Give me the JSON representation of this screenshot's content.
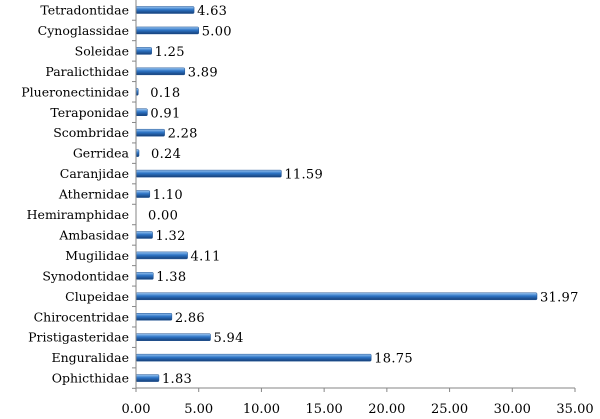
{
  "chart_data": {
    "type": "bar",
    "orientation": "horizontal",
    "title": "",
    "xlabel": "",
    "ylabel": "",
    "xlim": [
      0,
      35
    ],
    "x_ticks": [
      "0.00",
      "5.00",
      "10.00",
      "15.00",
      "20.00",
      "25.00",
      "30.00",
      "35.00"
    ],
    "grid": false,
    "legend": "none",
    "bar_color": "#2e75c6",
    "categories": [
      "Tetradontidae",
      "Cynoglassidae",
      "Soleidae",
      "Paralicthidae",
      "Plueronectinidae",
      "Teraponidae",
      "Scombridae",
      "Gerridea",
      "Caranjidae",
      "Athernidae",
      "Hemiramphidae",
      "Ambasidae",
      "Mugilidae",
      "Synodontidae",
      "Clupeidae",
      "Chirocentridae",
      "Pristigasteridae",
      "Enguralidae",
      "Ophicthidae"
    ],
    "values": [
      4.63,
      5.0,
      1.25,
      3.89,
      0.18,
      0.91,
      2.28,
      0.24,
      11.59,
      1.1,
      0.0,
      1.32,
      4.11,
      1.38,
      31.97,
      2.86,
      5.94,
      18.75,
      1.83
    ],
    "data_labels": [
      "4.63",
      "5.00",
      "1.25",
      "3.89",
      "0.18",
      "0.91",
      "2.28",
      "0.24",
      "11.59",
      "1.10",
      "0.00",
      "1.32",
      "4.11",
      "1.38",
      "31.97",
      "2.86",
      "5.94",
      "18.75",
      "1.83"
    ]
  }
}
